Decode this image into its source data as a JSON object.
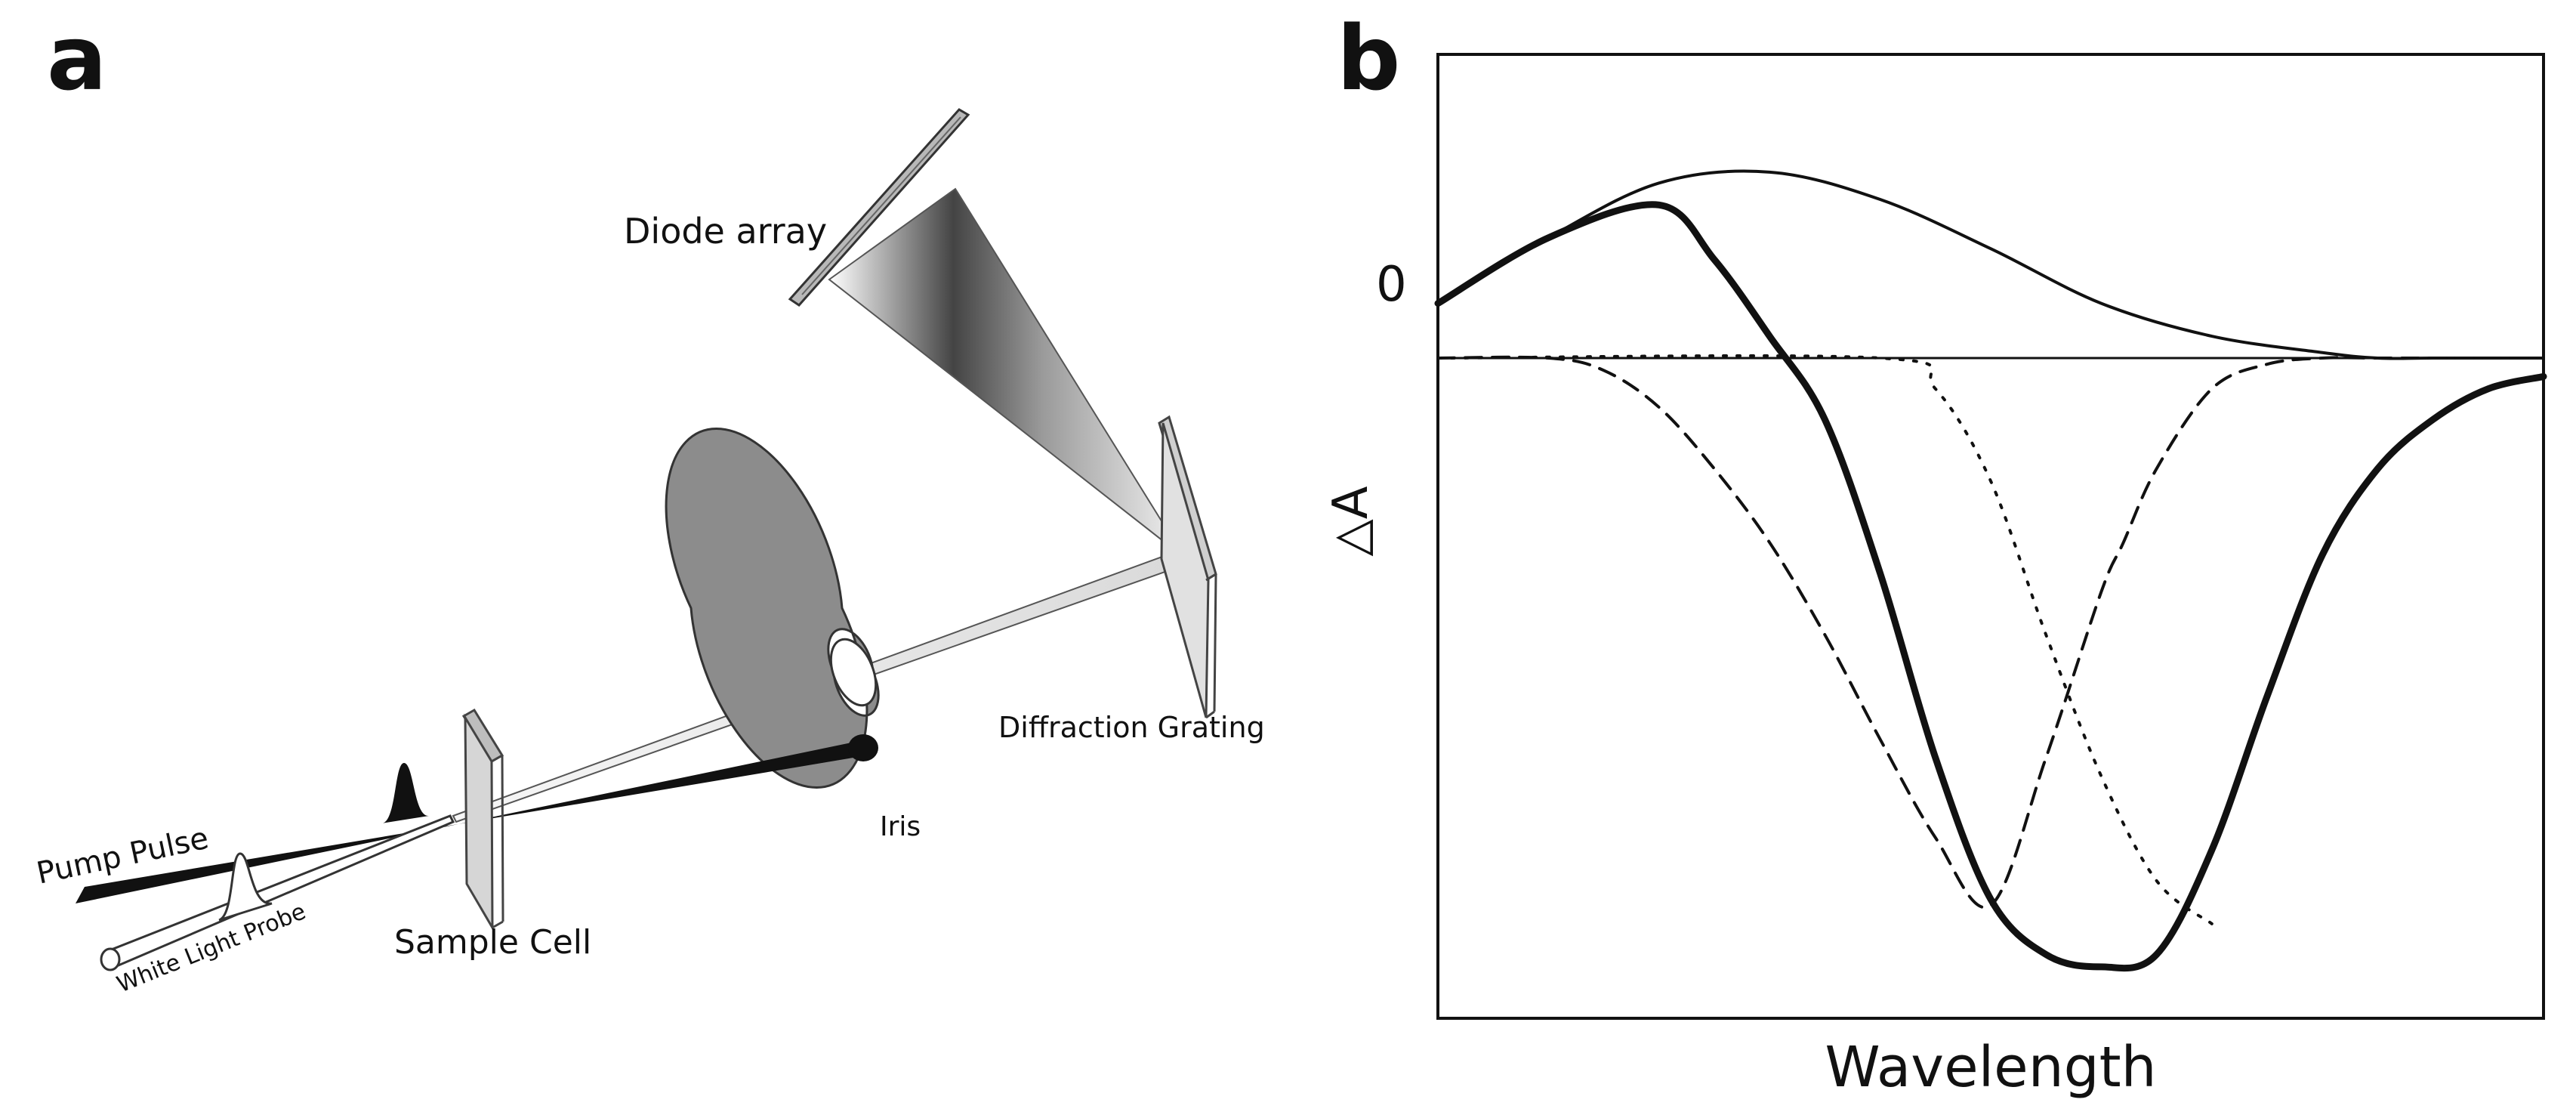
{
  "panel_a": {
    "panel_label": "a",
    "labels": {
      "diode_array": "Diode array",
      "diffraction_grating": "Diffraction Grating",
      "iris": "Iris",
      "pump_pulse": "Pump Pulse",
      "white_light_probe": "White Light Probe",
      "sample_cell": "Sample Cell"
    }
  },
  "panel_b": {
    "panel_label": "b",
    "zero_label": "0",
    "ylabel": "△A",
    "xlabel": "Wavelength"
  },
  "chart_data": {
    "type": "line",
    "xlabel": "Wavelength",
    "ylabel": "△A",
    "ytick_labels": [
      "0"
    ],
    "xlim": [
      0,
      100
    ],
    "ylim": [
      -1.0,
      0.5
    ],
    "grid": false,
    "legend": "none",
    "series": [
      {
        "style": "thin-solid",
        "x": [
          0,
          10,
          20,
          30,
          40,
          50,
          60,
          70,
          80,
          85,
          90,
          100
        ],
        "y": [
          0.1,
          0.22,
          0.32,
          0.34,
          0.29,
          0.2,
          0.1,
          0.04,
          0.01,
          0.0,
          0.0,
          0.0
        ]
      },
      {
        "style": "thick-solid",
        "x": [
          0,
          10,
          20,
          25,
          30,
          35,
          40,
          45,
          50,
          55,
          60,
          65,
          70,
          75,
          80,
          85,
          90,
          95,
          100
        ],
        "y": [
          0.1,
          0.22,
          0.28,
          0.18,
          0.04,
          -0.1,
          -0.35,
          -0.65,
          -0.88,
          -0.97,
          -0.99,
          -0.97,
          -0.8,
          -0.55,
          -0.32,
          -0.18,
          -0.1,
          -0.05,
          -0.03
        ]
      },
      {
        "style": "dashed",
        "x": [
          0,
          10,
          15,
          20,
          25,
          30,
          35,
          40,
          45,
          50,
          55,
          60,
          62,
          65,
          70,
          75,
          80,
          85,
          90,
          95,
          100
        ],
        "y": [
          0.0,
          0.0,
          -0.02,
          -0.08,
          -0.18,
          -0.3,
          -0.45,
          -0.62,
          -0.78,
          -0.89,
          -0.65,
          -0.38,
          -0.3,
          -0.18,
          -0.05,
          -0.01,
          0.0,
          0.0,
          0.0,
          0.0,
          0.0
        ]
      },
      {
        "style": "dotted",
        "x": [
          0,
          40,
          45,
          50,
          55,
          60,
          65,
          70
        ],
        "y": [
          0.0,
          0.0,
          -0.05,
          -0.2,
          -0.45,
          -0.68,
          -0.85,
          -0.92
        ]
      }
    ]
  }
}
